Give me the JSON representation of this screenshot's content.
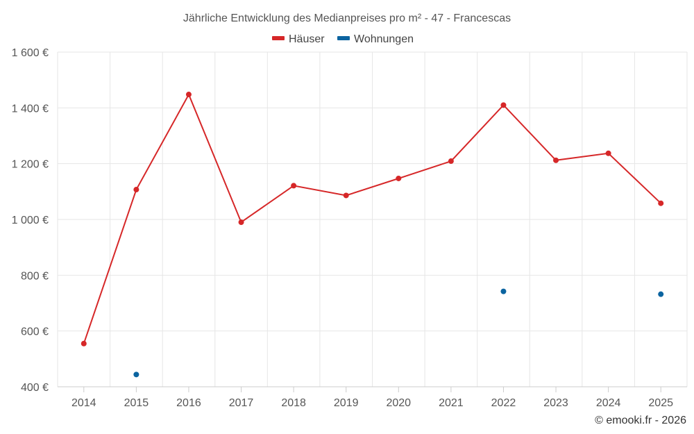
{
  "chart_data": {
    "type": "line",
    "title": "Jährliche Entwicklung des Medianpreises pro m² - 47 - Francescas",
    "x": [
      "2014",
      "2015",
      "2016",
      "2017",
      "2018",
      "2019",
      "2020",
      "2021",
      "2022",
      "2023",
      "2024",
      "2025"
    ],
    "series": [
      {
        "name": "Häuser",
        "color": "#d62728",
        "values": [
          555,
          1107,
          1448,
          990,
          1121,
          1086,
          1147,
          1209,
          1410,
          1212,
          1237,
          1058
        ]
      },
      {
        "name": "Wohnungen",
        "color": "#0b64a0",
        "values": [
          null,
          444,
          null,
          null,
          null,
          null,
          null,
          null,
          742,
          null,
          null,
          732
        ]
      }
    ],
    "ylim": [
      400,
      1600
    ],
    "yticks": [
      400,
      600,
      800,
      1000,
      1200,
      1400,
      1600
    ],
    "ytick_labels": [
      "400 €",
      "600 €",
      "800 €",
      "1 000 €",
      "1 200 €",
      "1 400 €",
      "1 600 €"
    ],
    "xlabel": "",
    "ylabel": "",
    "grid": true,
    "legend_position": "top-center"
  },
  "credit": "© emooki.fr - 2026"
}
